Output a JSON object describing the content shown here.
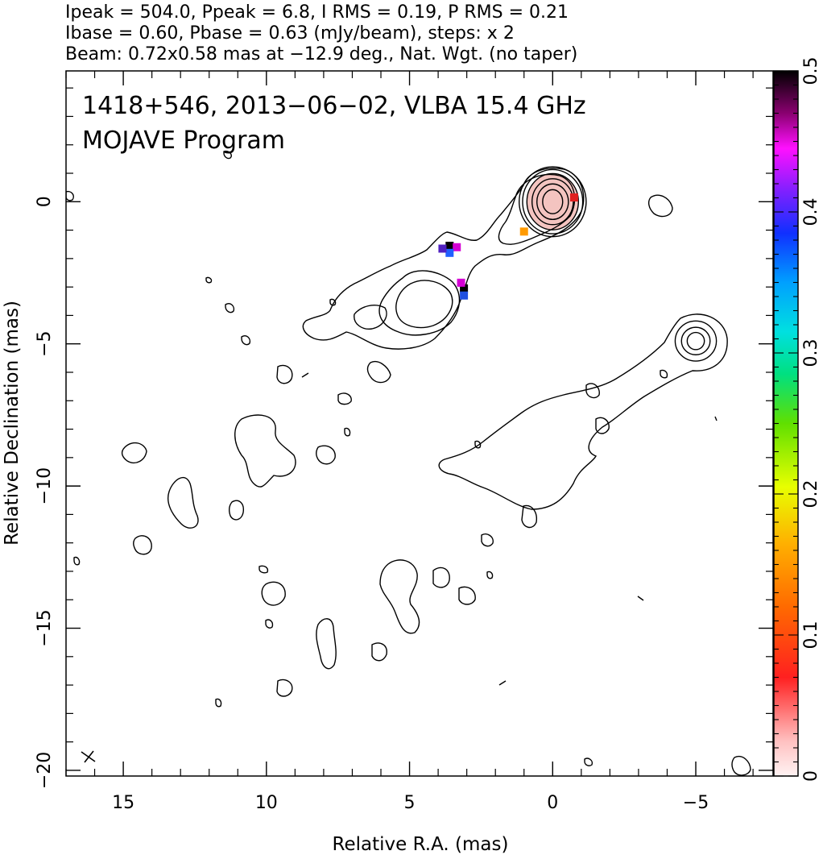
{
  "header": {
    "line1": "Ipeak = 504.0, Ppeak = 6.8, I RMS = 0.19, P RMS = 0.21",
    "line2": "Ibase = 0.60, Pbase = 0.63 (mJy/beam), steps: x 2",
    "line3": "Beam: 0.72x0.58 mas at −12.9 deg., Nat. Wgt. (no taper)"
  },
  "plot_text": {
    "source_line": "1418+546, 2013−06−02, VLBA 15.4 GHz",
    "program_line": "MOJAVE Program"
  },
  "chart_data": {
    "type": "contour",
    "xlabel": "Relative R.A. (mas)",
    "ylabel": "Relative Declination (mas)",
    "xlim": [
      17,
      -7.7
    ],
    "ylim": [
      -20.2,
      4.6
    ],
    "x_ticks": [
      15,
      10,
      5,
      0,
      -5
    ],
    "x_tick_labels": [
      "15",
      "10",
      "5",
      "0",
      "−5"
    ],
    "y_ticks": [
      0,
      -5,
      -10,
      -15,
      -20
    ],
    "y_tick_labels": [
      "0",
      "−5",
      "−10",
      "−15",
      "−20"
    ],
    "colorbar": {
      "range": [
        0,
        0.5
      ],
      "ticks": [
        0,
        0.1,
        0.2,
        0.3,
        0.4,
        0.5
      ],
      "tick_labels": [
        "0",
        "0.1",
        "0.2",
        "0.3",
        "0.4",
        "0.5"
      ]
    },
    "contour_peak": {
      "x": 0,
      "y": 0
    },
    "contour_ring_radii_mas": [
      [
        0.35,
        0.42
      ],
      [
        0.55,
        0.62
      ],
      [
        0.72,
        0.8
      ],
      [
        0.9,
        0.98
      ],
      [
        1.05,
        1.12
      ],
      [
        1.17,
        1.22
      ]
    ],
    "core_shading": {
      "x": 0,
      "y": 0,
      "rx": 0.9,
      "ry": 1.0,
      "color": "#f4c4c0"
    },
    "secondary_rings": {
      "x": -5.0,
      "y": -4.9,
      "radii_mas": [
        [
          0.3,
          0.3
        ],
        [
          0.5,
          0.48
        ],
        [
          0.72,
          0.7
        ]
      ]
    },
    "fractional_pol_pixels": [
      {
        "x": 3.6,
        "y": -1.55,
        "color": "#000000"
      },
      {
        "x": 3.35,
        "y": -1.6,
        "color": "#d400d4"
      },
      {
        "x": 3.6,
        "y": -1.8,
        "color": "#2060ff"
      },
      {
        "x": 3.85,
        "y": -1.65,
        "color": "#5020c0"
      },
      {
        "x": 3.1,
        "y": -3.05,
        "color": "#000000"
      },
      {
        "x": 3.2,
        "y": -2.85,
        "color": "#d400d4"
      },
      {
        "x": 3.1,
        "y": -3.3,
        "color": "#2050e0"
      },
      {
        "x": 1.0,
        "y": -1.05,
        "color": "#ff9a00"
      },
      {
        "x": -0.75,
        "y": 0.15,
        "color": "#e02020"
      }
    ]
  }
}
